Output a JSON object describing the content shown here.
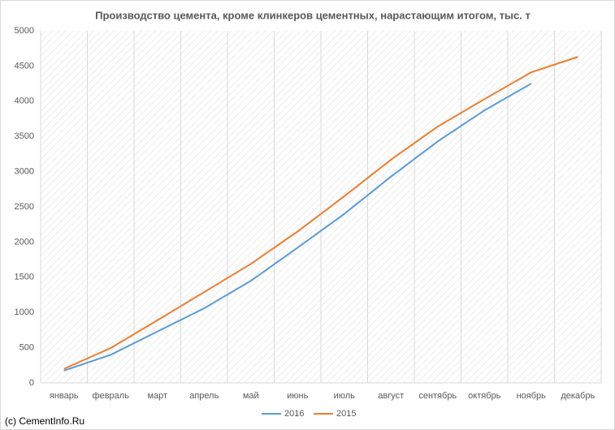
{
  "chart_data": {
    "type": "line",
    "title": "Производство цемента, кроме клинкеров цементных, нарастающим итогом, тыс. т",
    "categories": [
      "январь",
      "февраль",
      "март",
      "апрель",
      "май",
      "июнь",
      "июль",
      "август",
      "сентябрь",
      "октябрь",
      "ноябрь",
      "декабрь"
    ],
    "series": [
      {
        "name": "2016",
        "color": "#5b9bd5",
        "values": [
          175,
          400,
          730,
          1060,
          1450,
          1920,
          2400,
          2930,
          3430,
          3870,
          4250,
          null
        ]
      },
      {
        "name": "2015",
        "color": "#ed7d31",
        "values": [
          200,
          495,
          890,
          1290,
          1690,
          2150,
          2650,
          3170,
          3640,
          4030,
          4410,
          4630
        ]
      }
    ],
    "ylim": [
      0,
      5000
    ],
    "yticks": [
      0,
      500,
      1000,
      1500,
      2000,
      2500,
      3000,
      3500,
      4000,
      4500,
      5000
    ],
    "legend": "bottom",
    "source": "(c) CementInfo.Ru"
  }
}
